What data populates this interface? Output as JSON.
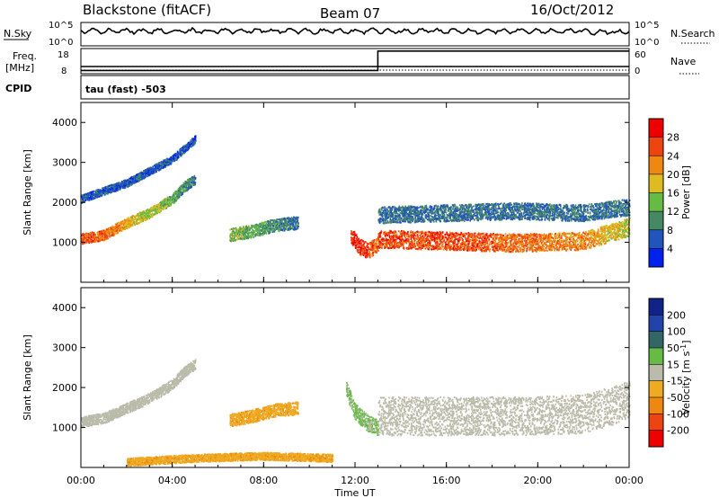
{
  "header": {
    "station": "Blackstone (fitACF)",
    "beam": "Beam 07",
    "date": "16/Oct/2012"
  },
  "summary": {
    "nsky_label": "N.Sky",
    "nsky_ticks": [
      "10^5",
      "10^0"
    ],
    "nsearch_label": "N.Search",
    "nsearch_ticks": [
      "10^5",
      "10^0"
    ],
    "freq_label": "Freq.",
    "freq_unit": "[MHz]",
    "freq_ticks": [
      18,
      8
    ],
    "nave_label": "Nave",
    "nave_ticks": [
      60,
      0
    ],
    "cpid_label": "CPID",
    "cpid_text": "tau (fast) -503",
    "nave_step": {
      "hours": [
        0,
        13,
        13,
        24
      ],
      "values": [
        4,
        4,
        58,
        58
      ]
    },
    "freq_step": {
      "hours": [
        0,
        1,
        1,
        24
      ],
      "values": [
        10.5,
        10.5,
        10.5,
        10.5
      ]
    }
  },
  "colors": {
    "power": [
      "#0022ee",
      "#2255bb",
      "#448866",
      "#66bb44",
      "#ddbb22",
      "#ee8811",
      "#ee4411",
      "#ee0000"
    ],
    "velocity": [
      "#ee0000",
      "#ee4411",
      "#ee8811",
      "#eeaa22",
      "#bbbbaa",
      "#66bb44",
      "#336666",
      "#2244aa",
      "#112288"
    ]
  },
  "chart_data": [
    {
      "type": "heatmap",
      "name": "power",
      "ylabel": "Slant Range [km]",
      "yticks": [
        1000,
        2000,
        3000,
        4000
      ],
      "ylim": [
        0,
        4500
      ],
      "xlim": [
        0,
        24
      ],
      "colorbar_label": "Power [dB]",
      "colorbar_ticks": [
        4,
        8,
        12,
        16,
        20,
        24,
        28
      ],
      "colorbar_range": [
        0,
        32
      ],
      "regions": [
        {
          "hours": [
            0,
            1,
            2,
            3,
            4,
            4.5,
            5
          ],
          "range": [
            1100,
            1200,
            1500,
            1750,
            2100,
            2400,
            2600
          ],
          "width": 160,
          "power": [
            26,
            24,
            20,
            16,
            12,
            10,
            8
          ]
        },
        {
          "hours": [
            0,
            2,
            4,
            5
          ],
          "range": [
            2100,
            2500,
            3100,
            3600
          ],
          "width": 120,
          "power": [
            6,
            6,
            6,
            6
          ]
        },
        {
          "hours": [
            6.5,
            7.5,
            8.5,
            9.5
          ],
          "range": [
            1200,
            1300,
            1450,
            1500
          ],
          "width": 200,
          "power": [
            14,
            12,
            10,
            8
          ]
        },
        {
          "hours": [
            11.8,
            12.2,
            12.6,
            13
          ],
          "range": [
            1200,
            900,
            800,
            1000
          ],
          "width": 250,
          "power": [
            28,
            28,
            26,
            24
          ]
        },
        {
          "hours": [
            13,
            16,
            19,
            22,
            24
          ],
          "range": [
            1100,
            1050,
            1000,
            1050,
            1400
          ],
          "width": 280,
          "power": [
            26,
            26,
            24,
            22,
            16
          ]
        },
        {
          "hours": [
            13,
            16,
            19,
            22,
            24
          ],
          "range": [
            1700,
            1750,
            1800,
            1750,
            1900
          ],
          "width": 260,
          "power": [
            8,
            8,
            8,
            8,
            8
          ]
        }
      ]
    },
    {
      "type": "heatmap",
      "name": "velocity",
      "ylabel": "Slant Range [km]",
      "yticks": [
        1000,
        2000,
        3000,
        4000
      ],
      "ylim": [
        0,
        4500
      ],
      "xlabel": "Time UT",
      "xticks": [
        "00:00",
        "04:00",
        "08:00",
        "12:00",
        "16:00",
        "20:00",
        "00:00"
      ],
      "xtick_hours": [
        0,
        4,
        8,
        12,
        16,
        20,
        24
      ],
      "xlim": [
        0,
        24
      ],
      "colorbar_label": "Velocity [m s",
      "colorbar_label_sup": "-1",
      "colorbar_label_end": "]",
      "colorbar_ticks": [
        -200,
        -100,
        -50,
        -15,
        15,
        50,
        100,
        200
      ],
      "regions": [
        {
          "hours": [
            0,
            1,
            2,
            3,
            4,
            4.5,
            5
          ],
          "range": [
            1150,
            1250,
            1500,
            1750,
            2100,
            2400,
            2600
          ],
          "width": 160,
          "velocity": 0
        },
        {
          "hours": [
            6.5,
            7.5,
            8.5,
            9.5
          ],
          "range": [
            1200,
            1300,
            1450,
            1500
          ],
          "width": 200,
          "velocity": -40
        },
        {
          "hours": [
            11.6,
            12,
            12.6,
            13
          ],
          "range": [
            2000,
            1400,
            1100,
            1000
          ],
          "width": 260,
          "velocity": 20
        },
        {
          "hours": [
            13,
            16,
            19,
            22,
            24
          ],
          "range": [
            1300,
            1300,
            1300,
            1350,
            1700
          ],
          "width": 600,
          "velocity": 0
        },
        {
          "hours": [
            2,
            5,
            8,
            11
          ],
          "range": [
            150,
            250,
            300,
            250
          ],
          "width": 120,
          "velocity": -40
        }
      ]
    }
  ]
}
